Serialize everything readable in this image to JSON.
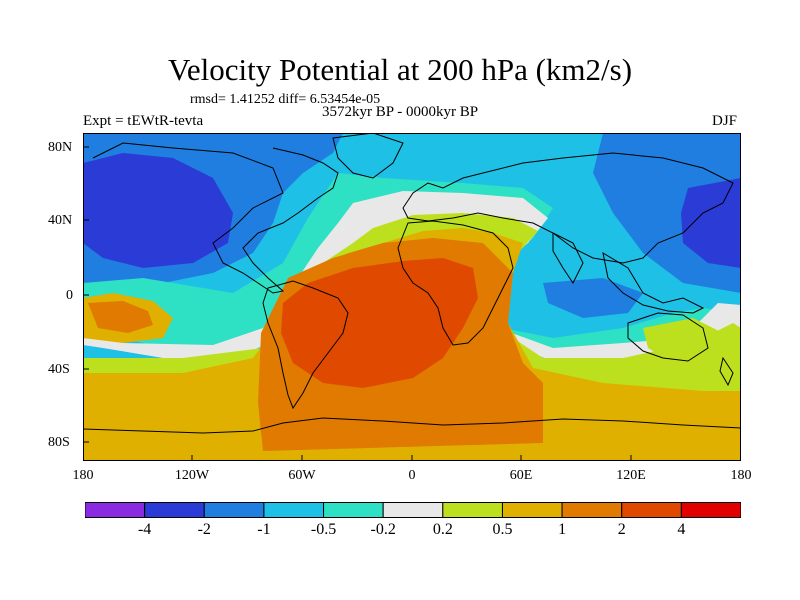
{
  "map": {
    "title": "Velocity Potential at 200 hPa (km2/s)",
    "stats_line": "rmsd= 1.41252 diff= 6.53454e-05",
    "period": "3572kyr BP - 0000kyr BP",
    "experiment": "Expt = tEWtR-tevta",
    "season": "DJF",
    "lat_ticks": [
      "80N",
      "40N",
      "0",
      "40S",
      "80S"
    ],
    "lon_ticks": [
      "180",
      "120W",
      "60W",
      "0",
      "60E",
      "120E",
      "180"
    ],
    "colorbar": {
      "labels": [
        "-4",
        "-2",
        "-1",
        "-0.5",
        "-0.2",
        "0.2",
        "0.5",
        "1",
        "2",
        "4"
      ],
      "colors": [
        "#8a2be2",
        "#2a3bd6",
        "#1f7ee0",
        "#1ec0e6",
        "#2ee0c4",
        "#e8e8e8",
        "#bde01e",
        "#e0b000",
        "#e07a00",
        "#e04a00",
        "#e00000"
      ]
    },
    "field_colors": {
      "deep_blue": "#2a3bd6",
      "blue": "#1f7ee0",
      "light_blue": "#1ec0e6",
      "teal": "#2ee0c4",
      "white": "#e8e8e8",
      "lime": "#bde01e",
      "gold": "#e0b000",
      "orange": "#e07a00",
      "red_orange": "#e04a00"
    }
  }
}
